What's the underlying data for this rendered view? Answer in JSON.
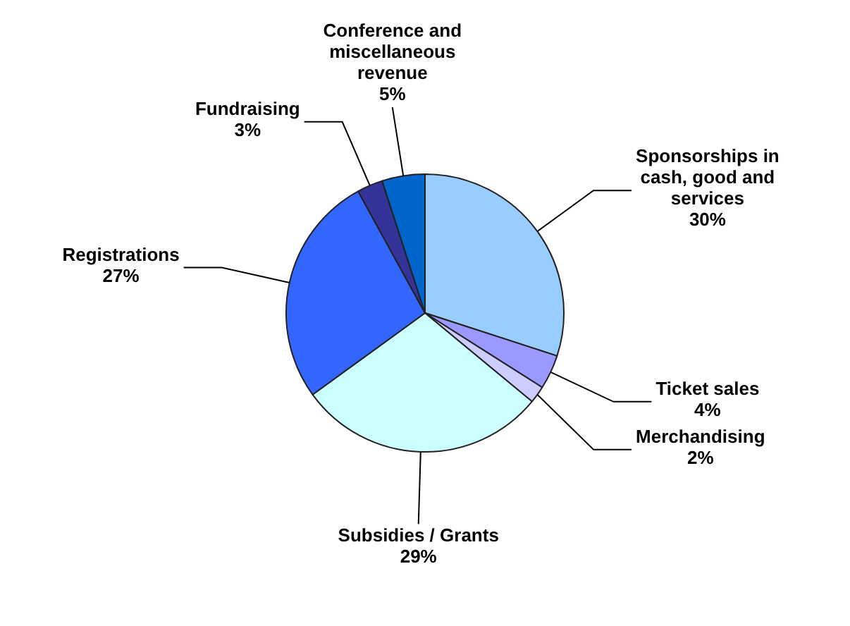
{
  "chart_data": {
    "type": "pie",
    "categories": [
      "Sponsorships in cash, good and services",
      "Ticket sales",
      "Merchandising",
      "Subsidies / Grants",
      "Registrations",
      "Fundraising",
      "Conference and miscellaneous revenue"
    ],
    "values": [
      30,
      4,
      2,
      29,
      27,
      3,
      5
    ],
    "value_labels": [
      "30%",
      "4%",
      "2%",
      "29%",
      "27%",
      "3%",
      "5%"
    ],
    "colors": [
      "#99ccff",
      "#9999ff",
      "#ccccff",
      "#ccffff",
      "#3366ff",
      "#333399",
      "#0066cc"
    ],
    "legend": false
  }
}
